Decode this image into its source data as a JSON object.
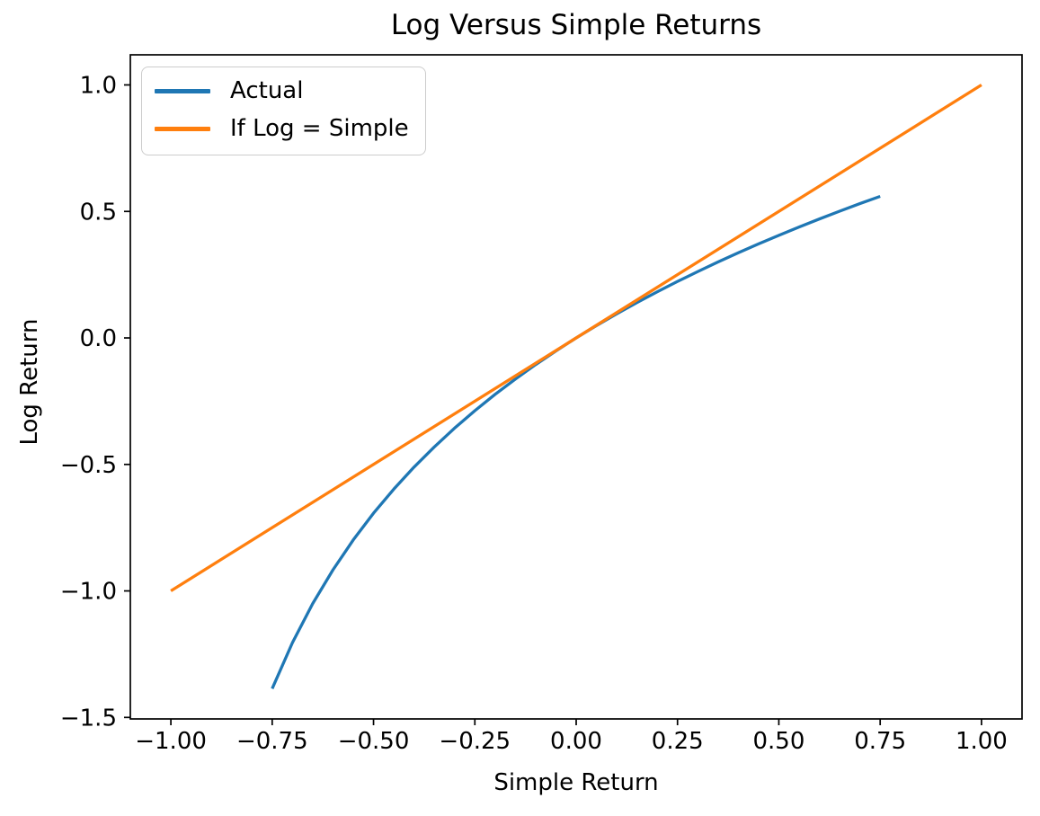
{
  "figure": {
    "background": "#ffffff",
    "text_color": "#000000",
    "spine_color": "#000000"
  },
  "chart_data": {
    "type": "line",
    "title": "Log Versus Simple Returns",
    "xlabel": "Simple Return",
    "ylabel": "Log Return",
    "xlim": [
      -1.1,
      1.1
    ],
    "ylim": [
      -1.506,
      1.119
    ],
    "grid": false,
    "x_ticks": [
      -1.0,
      -0.75,
      -0.5,
      -0.25,
      0.0,
      0.25,
      0.5,
      0.75,
      1.0
    ],
    "x_tick_labels": [
      "−1.00",
      "−0.75",
      "−0.50",
      "−0.25",
      "0.00",
      "0.25",
      "0.50",
      "0.75",
      "1.00"
    ],
    "y_ticks": [
      1.0,
      0.5,
      0.0,
      -0.5,
      -1.0,
      -1.5
    ],
    "y_tick_labels": [
      "1.0",
      "0.5",
      "0.0",
      "−0.5",
      "−1.0",
      "−1.5"
    ],
    "legend": {
      "position": "upper left",
      "frame_color": "#cccccc",
      "entries": [
        "Actual",
        "If Log = Simple"
      ]
    },
    "series": [
      {
        "name": "Actual",
        "color": "#1f77b4",
        "description": "log return = ln(1 + simple return)",
        "x": [
          -0.75,
          -0.7,
          -0.65,
          -0.6,
          -0.55,
          -0.5,
          -0.45,
          -0.4,
          -0.35,
          -0.3,
          -0.25,
          -0.2,
          -0.15,
          -0.1,
          -0.05,
          0.0,
          0.05,
          0.1,
          0.15,
          0.2,
          0.25,
          0.3,
          0.35,
          0.4,
          0.45,
          0.5,
          0.55,
          0.6,
          0.65,
          0.7,
          0.75
        ],
        "y": [
          -1.3863,
          -1.204,
          -1.0498,
          -0.9163,
          -0.7985,
          -0.6931,
          -0.5978,
          -0.5108,
          -0.4308,
          -0.3567,
          -0.2877,
          -0.2231,
          -0.1625,
          -0.1054,
          -0.0513,
          0.0,
          0.0488,
          0.0953,
          0.1398,
          0.1823,
          0.2231,
          0.2624,
          0.3001,
          0.3365,
          0.3716,
          0.4055,
          0.4383,
          0.47,
          0.5008,
          0.5306,
          0.5596
        ]
      },
      {
        "name": "If Log = Simple",
        "color": "#ff7f0e",
        "description": "identity line y = x",
        "x": [
          -1.0,
          1.0
        ],
        "y": [
          -1.0,
          1.0
        ]
      }
    ]
  }
}
